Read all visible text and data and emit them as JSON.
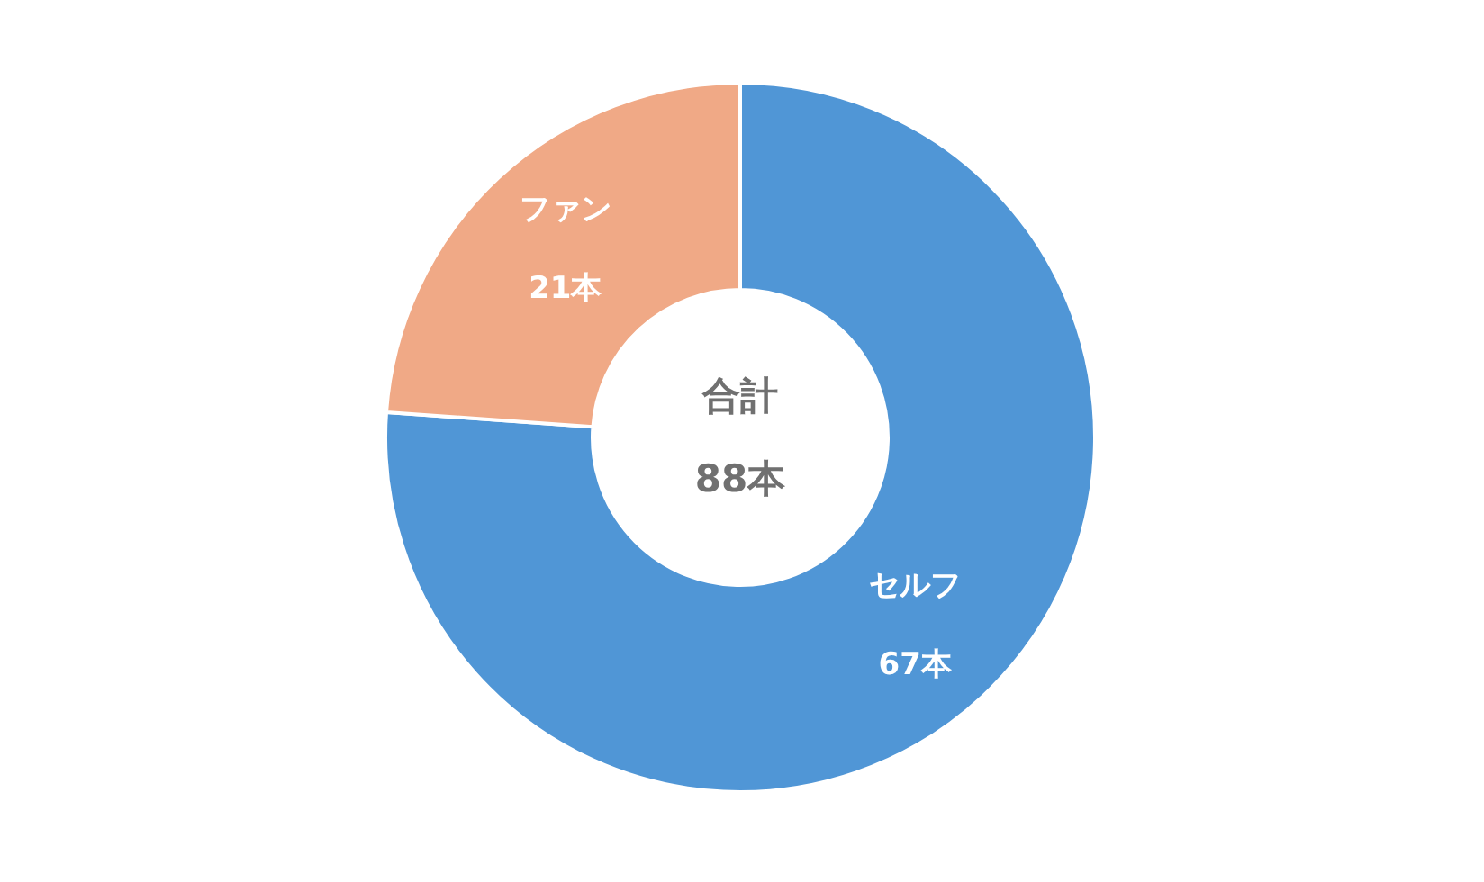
{
  "chart_data": {
    "type": "donut",
    "categories": [
      "セルフ",
      "ファン"
    ],
    "values": [
      67,
      21
    ],
    "colors": [
      "#5096d6",
      "#f0a986"
    ],
    "value_labels": [
      "67本",
      "21本"
    ],
    "annotations": [
      "合計",
      "88本"
    ],
    "legend": false
  }
}
